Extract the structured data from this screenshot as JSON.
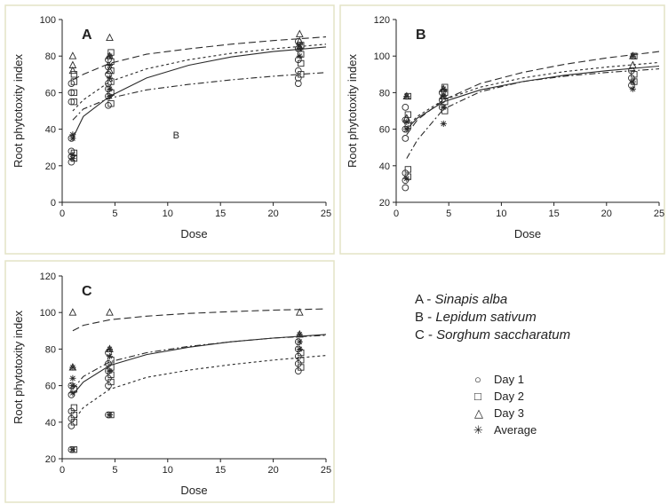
{
  "chart_data": [
    {
      "panel": "A",
      "type": "scatter",
      "xlabel": "Dose",
      "ylabel": "Root phytotoxity index",
      "xlim": [
        0,
        25
      ],
      "ylim": [
        0,
        100
      ],
      "xticks": [
        0,
        5,
        10,
        15,
        20,
        25
      ],
      "yticks": [
        0,
        20,
        40,
        60,
        80,
        100
      ],
      "annotations": [
        {
          "text": "B",
          "x": 10.8,
          "y": 35
        }
      ],
      "series": [
        {
          "name": "Day 1",
          "marker": "circle",
          "line": "solid",
          "points": [
            [
              1,
              22
            ],
            [
              1,
              25
            ],
            [
              1,
              28
            ],
            [
              1,
              35
            ],
            [
              1,
              55
            ],
            [
              1,
              60
            ],
            [
              1,
              65
            ],
            [
              4.5,
              53
            ],
            [
              4.5,
              58
            ],
            [
              4.5,
              62
            ],
            [
              4.5,
              65
            ],
            [
              4.5,
              70
            ],
            [
              4.5,
              74
            ],
            [
              4.5,
              78
            ],
            [
              22.5,
              65
            ],
            [
              22.5,
              68
            ],
            [
              22.5,
              72
            ],
            [
              22.5,
              78
            ],
            [
              22.5,
              84
            ],
            [
              22.5,
              88
            ]
          ],
          "curve": [
            [
              1,
              35
            ],
            [
              2,
              47
            ],
            [
              4.5,
              58
            ],
            [
              8,
              68
            ],
            [
              12,
              75
            ],
            [
              16,
              79.5
            ],
            [
              20,
              82.5
            ],
            [
              25,
              85
            ]
          ]
        },
        {
          "name": "Day 2",
          "marker": "square",
          "line": "shortdash",
          "points": [
            [
              1,
              24
            ],
            [
              1,
              27
            ],
            [
              1,
              55
            ],
            [
              1,
              60
            ],
            [
              1,
              66
            ],
            [
              1,
              70
            ],
            [
              4.5,
              54
            ],
            [
              4.5,
              60
            ],
            [
              4.5,
              66
            ],
            [
              4.5,
              72
            ],
            [
              4.5,
              77
            ],
            [
              4.5,
              82
            ],
            [
              22.5,
              70
            ],
            [
              22.5,
              76
            ],
            [
              22.5,
              81
            ],
            [
              22.5,
              86
            ]
          ],
          "curve": [
            [
              1,
              50
            ],
            [
              2,
              56
            ],
            [
              4.5,
              66
            ],
            [
              8,
              73
            ],
            [
              12,
              78
            ],
            [
              16,
              81.5
            ],
            [
              20,
              84
            ],
            [
              25,
              86.5
            ]
          ]
        },
        {
          "name": "Day 3",
          "marker": "triangle",
          "line": "longdash",
          "points": [
            [
              1,
              80
            ],
            [
              1,
              75
            ],
            [
              1,
              72
            ],
            [
              4.5,
              90
            ],
            [
              4.5,
              80
            ],
            [
              4.5,
              72
            ],
            [
              22.5,
              92
            ],
            [
              22.5,
              88
            ],
            [
              22.5,
              85
            ]
          ],
          "curve": [
            [
              1,
              67
            ],
            [
              2,
              70
            ],
            [
              4.5,
              76
            ],
            [
              8,
              81
            ],
            [
              12,
              84
            ],
            [
              16,
              86.5
            ],
            [
              20,
              88.5
            ],
            [
              25,
              90.5
            ]
          ]
        },
        {
          "name": "Average",
          "marker": "asterisk",
          "line": "dashdot",
          "points": [
            [
              1,
              24
            ],
            [
              1,
              26
            ],
            [
              1,
              35
            ],
            [
              1,
              37
            ],
            [
              4.5,
              58
            ],
            [
              4.5,
              62
            ],
            [
              4.5,
              68
            ],
            [
              4.5,
              75
            ],
            [
              4.5,
              80
            ],
            [
              22.5,
              80
            ],
            [
              22.5,
              84
            ],
            [
              22.5,
              86
            ]
          ],
          "curve": [
            [
              1,
              45
            ],
            [
              2,
              51
            ],
            [
              4.5,
              57
            ],
            [
              8,
              61.5
            ],
            [
              12,
              64.5
            ],
            [
              16,
              67
            ],
            [
              20,
              69
            ],
            [
              25,
              71
            ]
          ]
        }
      ]
    },
    {
      "panel": "B",
      "type": "scatter",
      "xlabel": "Dose",
      "ylabel": "Root phytotoxity index",
      "xlim": [
        0,
        25
      ],
      "ylim": [
        20,
        120
      ],
      "xticks": [
        0,
        5,
        10,
        15,
        20,
        25
      ],
      "yticks": [
        20,
        40,
        60,
        80,
        100,
        120
      ],
      "annotations": [],
      "series": [
        {
          "name": "Day 1",
          "marker": "circle",
          "line": "solid",
          "points": [
            [
              1,
              28
            ],
            [
              1,
              32
            ],
            [
              1,
              36
            ],
            [
              1,
              55
            ],
            [
              1,
              60
            ],
            [
              1,
              65
            ],
            [
              1,
              72
            ],
            [
              4.5,
              72
            ],
            [
              4.5,
              76
            ],
            [
              4.5,
              80
            ],
            [
              22.5,
              84
            ],
            [
              22.5,
              88
            ],
            [
              22.5,
              92
            ]
          ],
          "curve": [
            [
              1,
              60
            ],
            [
              2,
              66
            ],
            [
              4.5,
              75
            ],
            [
              8,
              81.5
            ],
            [
              12,
              86
            ],
            [
              16,
              89.5
            ],
            [
              20,
              92
            ],
            [
              25,
              94.5
            ]
          ]
        },
        {
          "name": "Day 2",
          "marker": "square",
          "line": "shortdash",
          "points": [
            [
              1,
              34
            ],
            [
              1,
              38
            ],
            [
              1,
              62
            ],
            [
              1,
              68
            ],
            [
              1,
              78
            ],
            [
              4.5,
              70
            ],
            [
              4.5,
              75
            ],
            [
              4.5,
              80
            ],
            [
              4.5,
              83
            ],
            [
              22.5,
              86
            ],
            [
              22.5,
              90
            ],
            [
              22.5,
              100
            ]
          ],
          "curve": [
            [
              1,
              61
            ],
            [
              2,
              67
            ],
            [
              4.5,
              76
            ],
            [
              8,
              83
            ],
            [
              12,
              88
            ],
            [
              16,
              91.5
            ],
            [
              20,
              94
            ],
            [
              25,
              96.5
            ]
          ]
        },
        {
          "name": "Day 3",
          "marker": "triangle",
          "line": "longdash",
          "points": [
            [
              1,
              78
            ],
            [
              1,
              66
            ],
            [
              4.5,
              82
            ],
            [
              4.5,
              78
            ],
            [
              22.5,
              100
            ],
            [
              22.5,
              95
            ]
          ],
          "curve": [
            [
              1,
              57
            ],
            [
              2,
              65
            ],
            [
              4.5,
              76
            ],
            [
              8,
              85
            ],
            [
              12,
              91
            ],
            [
              16,
              95.5
            ],
            [
              20,
              99
            ],
            [
              25,
              102.5
            ]
          ]
        },
        {
          "name": "Average",
          "marker": "asterisk",
          "line": "dashdot",
          "points": [
            [
              1,
              33
            ],
            [
              1,
              60
            ],
            [
              1,
              64
            ],
            [
              1,
              78
            ],
            [
              4.5,
              63
            ],
            [
              4.5,
              72
            ],
            [
              4.5,
              78
            ],
            [
              4.5,
              82
            ],
            [
              22.5,
              82
            ],
            [
              22.5,
              86
            ],
            [
              22.5,
              100
            ]
          ],
          "curve": [
            [
              1,
              44
            ],
            [
              2,
              54
            ],
            [
              4.5,
              71
            ],
            [
              8,
              80.5
            ],
            [
              12,
              86
            ],
            [
              16,
              89
            ],
            [
              20,
              91
            ],
            [
              25,
              93
            ]
          ]
        }
      ]
    },
    {
      "panel": "C",
      "type": "scatter",
      "xlabel": "Dose",
      "ylabel": "Root phytotoxity index",
      "xlim": [
        0,
        25
      ],
      "ylim": [
        20,
        120
      ],
      "xticks": [
        0,
        5,
        10,
        15,
        20,
        25
      ],
      "yticks": [
        20,
        40,
        60,
        80,
        100,
        120
      ],
      "annotations": [],
      "series": [
        {
          "name": "Day 1",
          "marker": "circle",
          "line": "solid",
          "points": [
            [
              1,
              25
            ],
            [
              1,
              38
            ],
            [
              1,
              42
            ],
            [
              1,
              46
            ],
            [
              1,
              55
            ],
            [
              1,
              60
            ],
            [
              4.5,
              44
            ],
            [
              4.5,
              60
            ],
            [
              4.5,
              64
            ],
            [
              4.5,
              68
            ],
            [
              4.5,
              72
            ],
            [
              4.5,
              78
            ],
            [
              22.5,
              68
            ],
            [
              22.5,
              72
            ],
            [
              22.5,
              76
            ],
            [
              22.5,
              80
            ],
            [
              22.5,
              84
            ]
          ],
          "curve": [
            [
              1,
              55
            ],
            [
              2,
              62
            ],
            [
              4.5,
              71
            ],
            [
              8,
              77
            ],
            [
              12,
              81
            ],
            [
              16,
              84
            ],
            [
              20,
              86
            ],
            [
              25,
              88
            ]
          ]
        },
        {
          "name": "Day 2",
          "marker": "square",
          "line": "shortdash",
          "points": [
            [
              1,
              25
            ],
            [
              1,
              40
            ],
            [
              1,
              44
            ],
            [
              1,
              48
            ],
            [
              1,
              58
            ],
            [
              4.5,
              44
            ],
            [
              4.5,
              62
            ],
            [
              4.5,
              66
            ],
            [
              4.5,
              70
            ],
            [
              4.5,
              74
            ],
            [
              22.5,
              70
            ],
            [
              22.5,
              74
            ],
            [
              22.5,
              78
            ]
          ],
          "curve": [
            [
              1,
              40
            ],
            [
              2,
              48
            ],
            [
              4.5,
              58
            ],
            [
              8,
              64.5
            ],
            [
              12,
              68.5
            ],
            [
              16,
              71.5
            ],
            [
              20,
              74
            ],
            [
              25,
              76.5
            ]
          ]
        },
        {
          "name": "Day 3",
          "marker": "triangle",
          "line": "longdash",
          "points": [
            [
              1,
              100
            ],
            [
              1,
              70
            ],
            [
              4.5,
              100
            ],
            [
              4.5,
              80
            ],
            [
              22.5,
              100
            ],
            [
              22.5,
              88
            ]
          ],
          "curve": [
            [
              1,
              90
            ],
            [
              2,
              93
            ],
            [
              4.5,
              96
            ],
            [
              8,
              98
            ],
            [
              12,
              99.5
            ],
            [
              16,
              100.5
            ],
            [
              20,
              101.3
            ],
            [
              25,
              102
            ]
          ]
        },
        {
          "name": "Average",
          "marker": "asterisk",
          "line": "dashdot",
          "points": [
            [
              1,
              25
            ],
            [
              1,
              56
            ],
            [
              1,
              60
            ],
            [
              1,
              64
            ],
            [
              1,
              70
            ],
            [
              4.5,
              44
            ],
            [
              4.5,
              68
            ],
            [
              4.5,
              76
            ],
            [
              4.5,
              80
            ],
            [
              22.5,
              80
            ],
            [
              22.5,
              84
            ],
            [
              22.5,
              88
            ]
          ],
          "curve": [
            [
              1,
              58
            ],
            [
              2,
              65
            ],
            [
              4.5,
              73
            ],
            [
              8,
              78
            ],
            [
              12,
              81.5
            ],
            [
              16,
              84
            ],
            [
              20,
              86
            ],
            [
              25,
              87.5
            ]
          ]
        }
      ]
    }
  ],
  "legend": {
    "panels": [
      {
        "prefix": "A - ",
        "species": "Sinapis alba"
      },
      {
        "prefix": "B - ",
        "species": "Lepidum sativum"
      },
      {
        "prefix": "C - ",
        "species": "Sorghum saccharatum"
      }
    ],
    "series": [
      {
        "symbol": "○",
        "label": "Day 1"
      },
      {
        "symbol": "□",
        "label": "Day 2"
      },
      {
        "symbol": "△",
        "label": "Day 3"
      },
      {
        "symbol": "✳",
        "label": "Average"
      }
    ]
  }
}
